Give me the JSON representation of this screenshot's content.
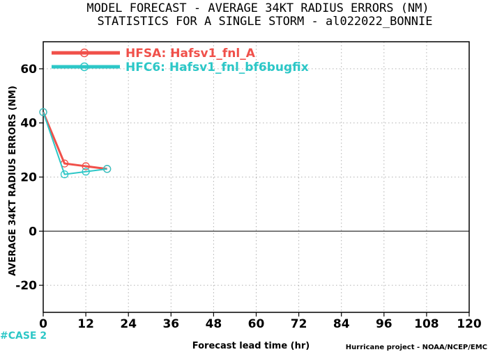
{
  "chart_data": {
    "type": "line",
    "title": "MODEL FORECAST - AVERAGE 34KT RADIUS ERRORS (NM)",
    "subtitle": "STATISTICS FOR A SINGLE STORM - al022022_BONNIE",
    "xlabel": "Forecast lead time (hr)",
    "ylabel": "AVERAGE 34KT RADIUS ERRORS (NM)",
    "xlim": [
      0,
      120
    ],
    "ylim": [
      -30,
      70
    ],
    "xticks": [
      0,
      12,
      24,
      36,
      48,
      60,
      72,
      84,
      96,
      108,
      120
    ],
    "yticks": [
      -20,
      0,
      20,
      40,
      60
    ],
    "grid": true,
    "legend_position": "top-left",
    "series": [
      {
        "name": "HFSA: Hafsv1_fnl_A",
        "color": "#f0504a",
        "x": [
          0,
          6,
          12,
          18
        ],
        "y": [
          44,
          25,
          24,
          23
        ]
      },
      {
        "name": "HFC6: Hafsv1_fnl_bf6bugfix",
        "color": "#2cc7c7",
        "x": [
          0,
          6,
          12,
          18
        ],
        "y": [
          44,
          21,
          22,
          23
        ]
      }
    ]
  },
  "annotations": {
    "case_count": "#CASE 2",
    "case_color": "#2cc7c7",
    "credit": "Hurricane project - NOAA/NCEP/EMC"
  }
}
